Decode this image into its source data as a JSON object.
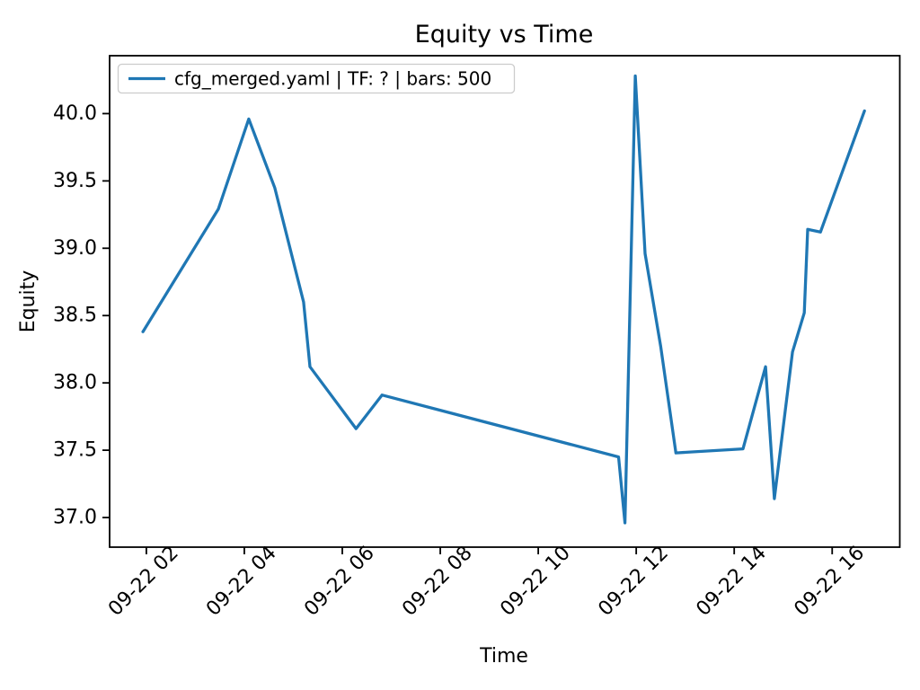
{
  "chart_data": {
    "type": "line",
    "title": "Equity vs Time",
    "xlabel": "Time",
    "ylabel": "Equity",
    "grid": false,
    "legend_position": "upper left",
    "background_color": "#ffffff",
    "axis_color": "#000000",
    "date": "09-22",
    "series": [
      {
        "name": "cfg_merged.yaml | TF: ? | bars: 500",
        "color": "#1f77b4",
        "x_hours": [
          1.93,
          3.47,
          4.09,
          4.62,
          5.21,
          5.34,
          6.28,
          6.81,
          11.64,
          11.77,
          11.98,
          12.18,
          12.5,
          12.81,
          14.18,
          14.64,
          14.82,
          15.19,
          15.43,
          15.5,
          15.76,
          16.66
        ],
        "equity": [
          38.38,
          39.29,
          39.96,
          39.45,
          38.6,
          38.12,
          37.66,
          37.91,
          37.45,
          36.96,
          40.28,
          38.96,
          38.27,
          37.48,
          37.51,
          38.12,
          37.14,
          38.23,
          38.52,
          39.14,
          39.12,
          40.02
        ]
      }
    ],
    "xlim_hours": [
      1.25,
      17.38
    ],
    "ylim": [
      36.78,
      40.43
    ],
    "x_ticks": [
      {
        "hour": 2,
        "label": "09-22 02"
      },
      {
        "hour": 4,
        "label": "09-22 04"
      },
      {
        "hour": 6,
        "label": "09-22 06"
      },
      {
        "hour": 8,
        "label": "09-22 08"
      },
      {
        "hour": 10,
        "label": "09-22 10"
      },
      {
        "hour": 12,
        "label": "09-22 12"
      },
      {
        "hour": 14,
        "label": "09-22 14"
      },
      {
        "hour": 16,
        "label": "09-22 16"
      }
    ],
    "y_ticks": [
      {
        "value": 37.0,
        "label": "37.0"
      },
      {
        "value": 37.5,
        "label": "37.5"
      },
      {
        "value": 38.0,
        "label": "38.0"
      },
      {
        "value": 38.5,
        "label": "38.5"
      },
      {
        "value": 39.0,
        "label": "39.0"
      },
      {
        "value": 39.5,
        "label": "39.5"
      },
      {
        "value": 40.0,
        "label": "40.0"
      }
    ]
  }
}
